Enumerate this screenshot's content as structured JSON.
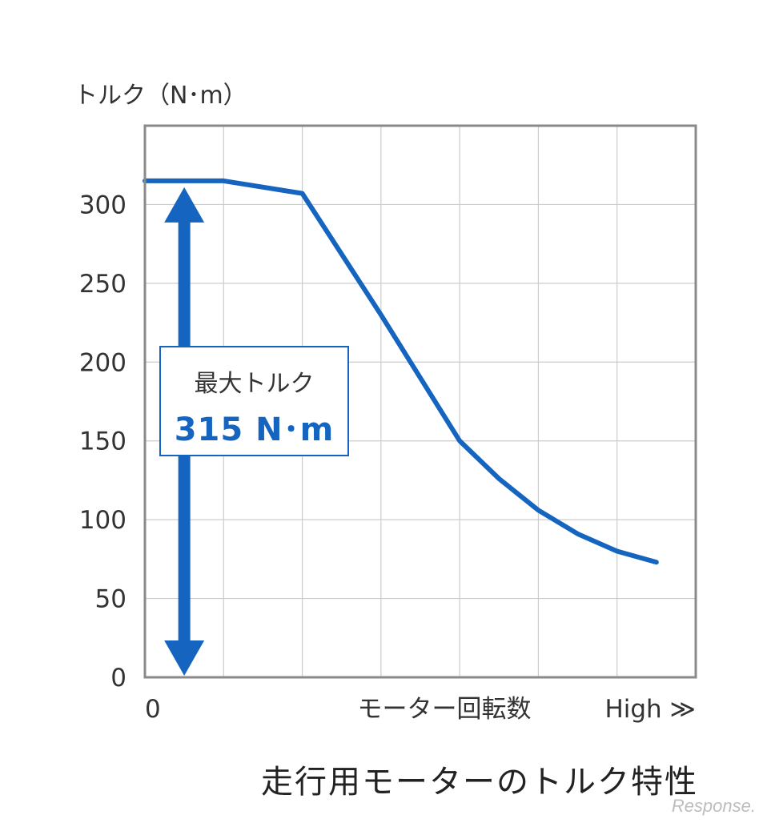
{
  "chart_data": {
    "type": "line",
    "ylabel": "トルク（N･m）",
    "xlabel": "モーター回転数",
    "x_tick_labels": [
      "0",
      "モーター回転数",
      "High ≫"
    ],
    "y_ticks": [
      0,
      50,
      100,
      150,
      200,
      250,
      300
    ],
    "xlim": [
      0,
      7
    ],
    "ylim": [
      0,
      350
    ],
    "grid": true,
    "series": [
      {
        "x": [
          0,
          1,
          2,
          3,
          4,
          4.5,
          5,
          5.5,
          6,
          6.5
        ],
        "y": [
          315,
          315,
          307,
          230,
          150,
          126,
          106,
          91,
          80,
          73
        ]
      }
    ],
    "annotation": {
      "label": "最大トルク",
      "value": "315 N･m",
      "from": 0,
      "to": 315
    },
    "caption": "走行用モーターのトルク特性",
    "colors": {
      "line": "#1565c0",
      "arrow": "#1565c0",
      "grid": "#cccccc",
      "frame": "#8a8a8a"
    }
  },
  "watermark": "Response."
}
